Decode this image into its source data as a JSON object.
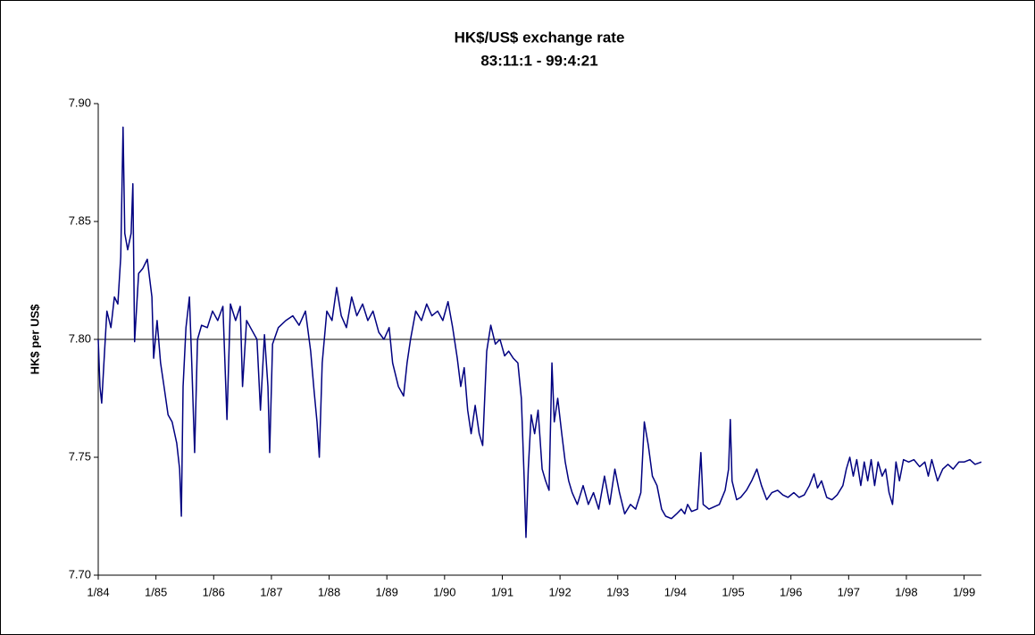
{
  "chart_data": {
    "type": "line",
    "title": "HK$/US$ exchange rate",
    "subtitle": "83:11:1 - 99:4:21",
    "y_label": "HK$ per US$",
    "xlim": [
      1984,
      1999.3
    ],
    "ylim": [
      7.7,
      7.9
    ],
    "xticks": [
      {
        "value": 1984,
        "label": "1/84"
      },
      {
        "value": 1985,
        "label": "1/85"
      },
      {
        "value": 1986,
        "label": "1/86"
      },
      {
        "value": 1987,
        "label": "1/87"
      },
      {
        "value": 1988,
        "label": "1/88"
      },
      {
        "value": 1989,
        "label": "1/89"
      },
      {
        "value": 1990,
        "label": "1/90"
      },
      {
        "value": 1991,
        "label": "1/91"
      },
      {
        "value": 1992,
        "label": "1/92"
      },
      {
        "value": 1993,
        "label": "1/93"
      },
      {
        "value": 1994,
        "label": "1/94"
      },
      {
        "value": 1995,
        "label": "1/95"
      },
      {
        "value": 1996,
        "label": "1/96"
      },
      {
        "value": 1997,
        "label": "1/97"
      },
      {
        "value": 1998,
        "label": "1/98"
      },
      {
        "value": 1999,
        "label": "1/99"
      }
    ],
    "yticks": [
      {
        "value": 7.7,
        "label": "7.70"
      },
      {
        "value": 7.75,
        "label": "7.75"
      },
      {
        "value": 7.8,
        "label": "7.80"
      },
      {
        "value": 7.85,
        "label": "7.85"
      },
      {
        "value": 7.9,
        "label": "7.90"
      }
    ],
    "reference_line": 7.8,
    "color": "#000080",
    "x": [
      1984.0,
      1984.03,
      1984.06,
      1984.11,
      1984.15,
      1984.22,
      1984.28,
      1984.34,
      1984.39,
      1984.43,
      1984.46,
      1984.51,
      1984.57,
      1984.6,
      1984.63,
      1984.7,
      1984.77,
      1984.85,
      1984.93,
      1984.96,
      1985.02,
      1985.08,
      1985.14,
      1985.21,
      1985.28,
      1985.36,
      1985.41,
      1985.44,
      1985.47,
      1985.52,
      1985.58,
      1985.62,
      1985.67,
      1985.72,
      1985.79,
      1985.89,
      1985.98,
      1986.07,
      1986.16,
      1986.23,
      1986.29,
      1986.38,
      1986.46,
      1986.5,
      1986.57,
      1986.66,
      1986.75,
      1986.81,
      1986.88,
      1986.94,
      1986.97,
      1987.02,
      1987.12,
      1987.25,
      1987.37,
      1987.48,
      1987.59,
      1987.68,
      1987.74,
      1987.79,
      1987.83,
      1987.88,
      1987.96,
      1988.05,
      1988.13,
      1988.21,
      1988.3,
      1988.39,
      1988.48,
      1988.58,
      1988.67,
      1988.76,
      1988.86,
      1988.95,
      1989.04,
      1989.1,
      1989.2,
      1989.29,
      1989.35,
      1989.41,
      1989.5,
      1989.6,
      1989.69,
      1989.78,
      1989.88,
      1989.97,
      1990.06,
      1990.14,
      1990.22,
      1990.28,
      1990.34,
      1990.4,
      1990.46,
      1990.53,
      1990.6,
      1990.66,
      1990.73,
      1990.8,
      1990.88,
      1990.96,
      1991.04,
      1991.11,
      1991.19,
      1991.27,
      1991.33,
      1991.38,
      1991.41,
      1991.45,
      1991.5,
      1991.56,
      1991.62,
      1991.69,
      1991.75,
      1991.81,
      1991.86,
      1991.9,
      1991.96,
      1992.03,
      1992.09,
      1992.15,
      1992.21,
      1992.3,
      1992.4,
      1992.49,
      1992.58,
      1992.67,
      1992.77,
      1992.86,
      1992.95,
      1993.03,
      1993.12,
      1993.22,
      1993.31,
      1993.4,
      1993.46,
      1993.53,
      1993.6,
      1993.68,
      1993.76,
      1993.83,
      1993.93,
      1994.02,
      1994.1,
      1994.16,
      1994.21,
      1994.28,
      1994.38,
      1994.44,
      1994.48,
      1994.58,
      1994.67,
      1994.76,
      1994.86,
      1994.92,
      1994.95,
      1994.98,
      1995.06,
      1995.13,
      1995.23,
      1995.32,
      1995.41,
      1995.49,
      1995.58,
      1995.67,
      1995.77,
      1995.86,
      1995.95,
      1996.05,
      1996.14,
      1996.23,
      1996.32,
      1996.4,
      1996.46,
      1996.53,
      1996.62,
      1996.71,
      1996.8,
      1996.9,
      1996.96,
      1997.02,
      1997.08,
      1997.14,
      1997.21,
      1997.27,
      1997.33,
      1997.39,
      1997.45,
      1997.51,
      1997.58,
      1997.64,
      1997.7,
      1997.76,
      1997.82,
      1997.88,
      1997.95,
      1998.04,
      1998.13,
      1998.23,
      1998.32,
      1998.38,
      1998.44,
      1998.54,
      1998.63,
      1998.72,
      1998.81,
      1998.91,
      1999.0,
      1999.1,
      1999.19,
      1999.3
    ],
    "values": [
      7.8,
      7.78,
      7.773,
      7.795,
      7.812,
      7.805,
      7.818,
      7.815,
      7.835,
      7.89,
      7.845,
      7.838,
      7.845,
      7.866,
      7.799,
      7.828,
      7.83,
      7.834,
      7.818,
      7.792,
      7.808,
      7.79,
      7.78,
      7.768,
      7.765,
      7.756,
      7.745,
      7.725,
      7.78,
      7.805,
      7.818,
      7.79,
      7.752,
      7.8,
      7.806,
      7.805,
      7.812,
      7.808,
      7.814,
      7.766,
      7.815,
      7.808,
      7.814,
      7.78,
      7.808,
      7.804,
      7.8,
      7.77,
      7.802,
      7.78,
      7.752,
      7.798,
      7.805,
      7.808,
      7.81,
      7.806,
      7.812,
      7.795,
      7.778,
      7.765,
      7.75,
      7.79,
      7.812,
      7.808,
      7.822,
      7.81,
      7.805,
      7.818,
      7.81,
      7.815,
      7.808,
      7.812,
      7.803,
      7.8,
      7.805,
      7.79,
      7.78,
      7.776,
      7.79,
      7.8,
      7.812,
      7.808,
      7.815,
      7.81,
      7.812,
      7.808,
      7.816,
      7.805,
      7.792,
      7.78,
      7.788,
      7.77,
      7.76,
      7.772,
      7.76,
      7.755,
      7.795,
      7.806,
      7.798,
      7.8,
      7.793,
      7.795,
      7.792,
      7.79,
      7.775,
      7.74,
      7.716,
      7.745,
      7.768,
      7.76,
      7.77,
      7.745,
      7.74,
      7.736,
      7.79,
      7.765,
      7.775,
      7.76,
      7.748,
      7.74,
      7.735,
      7.73,
      7.738,
      7.73,
      7.735,
      7.728,
      7.742,
      7.73,
      7.745,
      7.735,
      7.726,
      7.73,
      7.728,
      7.735,
      7.765,
      7.755,
      7.742,
      7.738,
      7.728,
      7.725,
      7.724,
      7.726,
      7.728,
      7.726,
      7.73,
      7.727,
      7.728,
      7.752,
      7.73,
      7.728,
      7.729,
      7.73,
      7.736,
      7.745,
      7.766,
      7.74,
      7.732,
      7.733,
      7.736,
      7.74,
      7.745,
      7.738,
      7.732,
      7.735,
      7.736,
      7.734,
      7.733,
      7.735,
      7.733,
      7.734,
      7.738,
      7.743,
      7.737,
      7.74,
      7.733,
      7.732,
      7.734,
      7.738,
      7.745,
      7.75,
      7.742,
      7.749,
      7.738,
      7.748,
      7.74,
      7.749,
      7.738,
      7.748,
      7.742,
      7.745,
      7.735,
      7.73,
      7.748,
      7.74,
      7.749,
      7.748,
      7.749,
      7.746,
      7.748,
      7.742,
      7.749,
      7.74,
      7.745,
      7.747,
      7.745,
      7.748,
      7.748,
      7.749,
      7.747,
      7.748
    ]
  }
}
